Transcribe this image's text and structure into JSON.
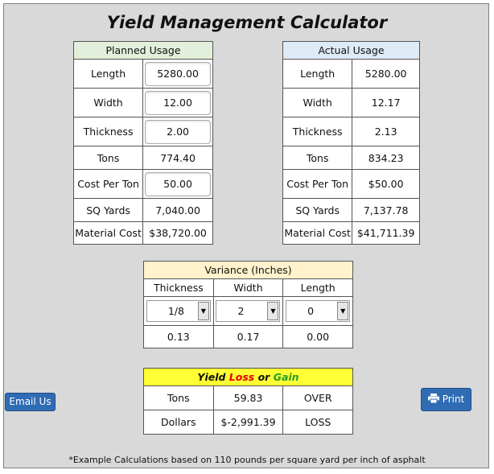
{
  "title": "Yield Management Calculator",
  "planned": {
    "header": "Planned Usage",
    "rows": [
      {
        "label": "Length",
        "value": "5280.00",
        "input": true
      },
      {
        "label": "Width",
        "value": "12.00",
        "input": true
      },
      {
        "label": "Thickness",
        "value": "2.00",
        "input": true
      },
      {
        "label": "Tons",
        "value": "774.40",
        "input": false
      },
      {
        "label": "Cost Per Ton",
        "value": "50.00",
        "input": true
      },
      {
        "label": "SQ Yards",
        "value": "7,040.00",
        "input": false
      },
      {
        "label": "Material Cost",
        "value": "$38,720.00",
        "input": false
      }
    ]
  },
  "actual": {
    "header": "Actual Usage",
    "rows": [
      {
        "label": "Length",
        "value": "5280.00"
      },
      {
        "label": "Width",
        "value": "12.17"
      },
      {
        "label": "Thickness",
        "value": "2.13"
      },
      {
        "label": "Tons",
        "value": "834.23"
      },
      {
        "label": "Cost Per Ton",
        "value": "$50.00"
      },
      {
        "label": "SQ Yards",
        "value": "7,137.78"
      },
      {
        "label": "Material Cost",
        "value": "$41,711.39"
      }
    ]
  },
  "variance": {
    "header": "Variance (Inches)",
    "columns": [
      "Thickness",
      "Width",
      "Length"
    ],
    "selects": [
      "1/8",
      "2",
      "0"
    ],
    "values": [
      "0.13",
      "0.17",
      "0.00"
    ]
  },
  "yield": {
    "header_prefix": "Yield ",
    "header_loss": "Loss",
    "header_or": " or ",
    "header_gain": "Gain",
    "rows": [
      {
        "label": "Tons",
        "value": "59.83",
        "status": "OVER"
      },
      {
        "label": "Dollars",
        "value": "$-2,991.39",
        "status": "LOSS"
      }
    ]
  },
  "buttons": {
    "email": "Email Us",
    "print": "Print"
  },
  "footnote": "*Example Calculations based on 110 pounds per square yard per inch of asphalt",
  "colors": {
    "background": "#d9d9d9",
    "planned_header": "#e2efda",
    "actual_header": "#ddebf7",
    "variance_header": "#fff2cc",
    "yield_header": "#ffff33",
    "button": "#2f6cb3",
    "loss": "#e00000",
    "gain": "#2a9d2a"
  }
}
